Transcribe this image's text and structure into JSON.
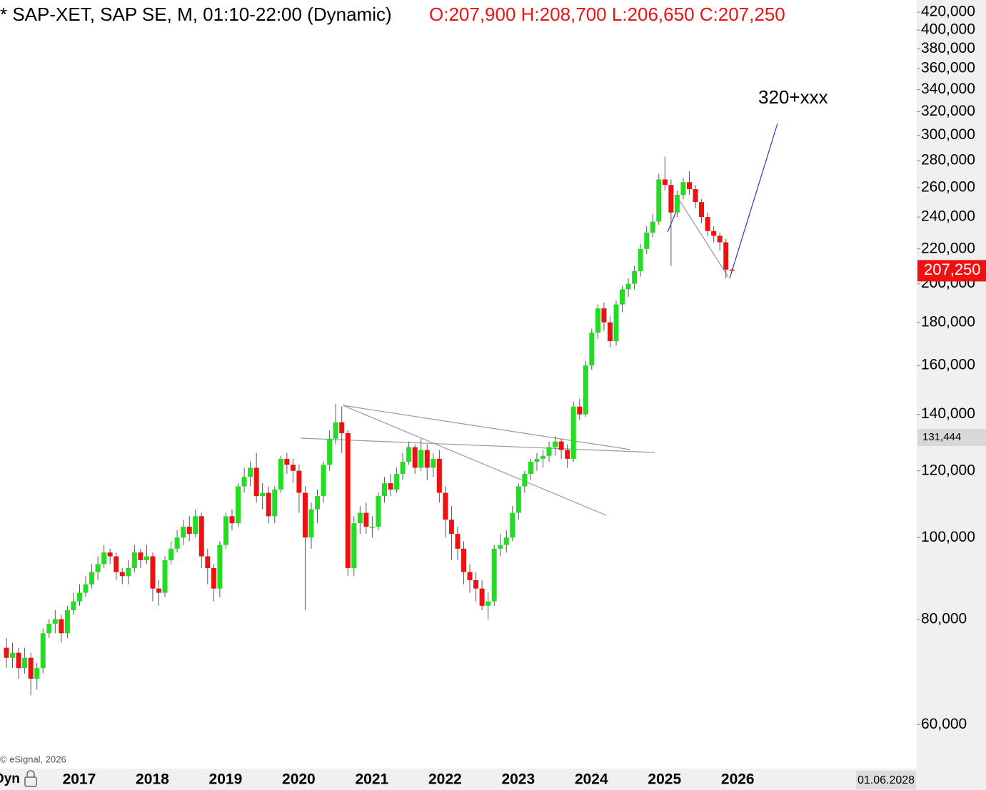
{
  "chart_data": {
    "type": "candlestick",
    "title": "* SAP-XET, SAP SE, M, 01:10-22:00 (Dynamic)",
    "ohlc_label": "O:207,900 H:208,700 L:206,650 C:207,250",
    "annotation": "320+xxx",
    "copyright": "© eSignal, 2026",
    "mode_label": "Dyn",
    "end_date_label": "01.06.2028",
    "log_scale": true,
    "up_color": "#22dd22",
    "down_color": "#ee1111",
    "ylim": [
      53.2,
      434.2
    ],
    "yticks": [
      {
        "value": 420,
        "label": "420,000"
      },
      {
        "value": 400,
        "label": "400,000"
      },
      {
        "value": 380,
        "label": "380,000"
      },
      {
        "value": 360,
        "label": "360,000"
      },
      {
        "value": 340,
        "label": "340,000"
      },
      {
        "value": 320,
        "label": "320,000"
      },
      {
        "value": 300,
        "label": "300,000"
      },
      {
        "value": 280,
        "label": "280,000"
      },
      {
        "value": 260,
        "label": "260,000"
      },
      {
        "value": 240,
        "label": "240,000"
      },
      {
        "value": 220,
        "label": "220,000"
      },
      {
        "value": 200,
        "label": "200,000"
      },
      {
        "value": 180,
        "label": "180,000"
      },
      {
        "value": 160,
        "label": "160,000"
      },
      {
        "value": 140,
        "label": "140,000"
      },
      {
        "value": 120,
        "label": "120,000"
      },
      {
        "value": 100,
        "label": "100,000"
      },
      {
        "value": 80,
        "label": "80,000"
      },
      {
        "value": 60,
        "label": "60,000"
      }
    ],
    "last_price": {
      "value": 207.25,
      "label": "207,250"
    },
    "crosshair_price": {
      "value": 131.444,
      "label": "131,444"
    },
    "categories": [
      null,
      null,
      null,
      null,
      null,
      null,
      null,
      null,
      null,
      null,
      null,
      "2017",
      null,
      null,
      null,
      null,
      null,
      null,
      null,
      null,
      null,
      null,
      null,
      "2018",
      null,
      null,
      null,
      null,
      null,
      null,
      null,
      null,
      null,
      null,
      null,
      "2019",
      null,
      null,
      null,
      null,
      null,
      null,
      null,
      null,
      null,
      null,
      null,
      "2020",
      null,
      null,
      null,
      null,
      null,
      null,
      null,
      null,
      null,
      null,
      null,
      "2021",
      null,
      null,
      null,
      null,
      null,
      null,
      null,
      null,
      null,
      null,
      null,
      "2022",
      null,
      null,
      null,
      null,
      null,
      null,
      null,
      null,
      null,
      null,
      null,
      "2023",
      null,
      null,
      null,
      null,
      null,
      null,
      null,
      null,
      null,
      null,
      null,
      "2024",
      null,
      null,
      null,
      null,
      null,
      null,
      null,
      null,
      null,
      null,
      null,
      "2025",
      null,
      null,
      null,
      null,
      null,
      null,
      null,
      null,
      null,
      null,
      null,
      "2026"
    ],
    "open": [
      74,
      72,
      73,
      70,
      72,
      68,
      70,
      77,
      79,
      80,
      77,
      82,
      84,
      86,
      88,
      91,
      93,
      96,
      95,
      91,
      90,
      92,
      96,
      94,
      95,
      87,
      86,
      94,
      97,
      100,
      103,
      101,
      106,
      95,
      92,
      87,
      98,
      106,
      104,
      115,
      118,
      121,
      112,
      113,
      106,
      114,
      124,
      122,
      120,
      113,
      100,
      108,
      112,
      122,
      131,
      137,
      133,
      92,
      104,
      107,
      103,
      103,
      112,
      116,
      114,
      119,
      123,
      128,
      121,
      127,
      121,
      124,
      113,
      105,
      101,
      97,
      91,
      89,
      87,
      83,
      84,
      97,
      98,
      100,
      107,
      115,
      119,
      123,
      124,
      125,
      128,
      130,
      127,
      124,
      143,
      140,
      160,
      175,
      187,
      180,
      171,
      189,
      197,
      200,
      207,
      220,
      230,
      237,
      266,
      262,
      243,
      255,
      264,
      259,
      250,
      240,
      231,
      228,
      224,
      207.9
    ],
    "high": [
      76,
      75,
      74,
      74,
      73,
      71,
      78,
      80,
      82,
      81,
      83,
      86,
      88,
      90,
      93,
      95,
      98,
      97,
      96,
      92,
      94,
      98,
      97,
      98,
      96,
      89,
      95,
      99,
      102,
      105,
      106,
      108,
      107,
      97,
      93,
      99,
      107,
      108,
      116,
      121,
      123,
      126,
      116,
      115,
      115,
      125,
      126,
      124,
      122,
      115,
      110,
      114,
      123,
      134,
      144,
      143,
      134,
      106,
      109,
      110,
      106,
      113,
      118,
      119,
      121,
      126,
      130,
      129,
      131,
      129,
      126,
      127,
      115,
      109,
      103,
      99,
      93,
      91,
      89,
      86,
      98,
      101,
      102,
      109,
      116,
      120,
      124,
      126,
      127,
      130,
      132,
      131,
      129,
      145,
      146,
      162,
      177,
      189,
      190,
      183,
      191,
      199,
      203,
      210,
      223,
      234,
      242,
      270,
      283,
      266,
      258,
      267,
      272,
      262,
      252,
      243,
      234,
      230,
      226,
      208.7
    ],
    "low": [
      70,
      70,
      68,
      69,
      65,
      66,
      69,
      76,
      77,
      75,
      76,
      81,
      83,
      85,
      87,
      89,
      92,
      93,
      89,
      88,
      88,
      91,
      92,
      93,
      84,
      83,
      85,
      93,
      96,
      98,
      99,
      100,
      92,
      88,
      84,
      85,
      97,
      102,
      103,
      113,
      115,
      110,
      108,
      104,
      104,
      113,
      119,
      116,
      107,
      82,
      97,
      104,
      110,
      120,
      129,
      126,
      90,
      90,
      101,
      101,
      100,
      102,
      110,
      112,
      113,
      117,
      122,
      119,
      120,
      117,
      118,
      110,
      100,
      94,
      94,
      88,
      86,
      84,
      82,
      80,
      83,
      95,
      96,
      99,
      105,
      113,
      117,
      120,
      121,
      123,
      125,
      124,
      121,
      123,
      138,
      139,
      158,
      172,
      176,
      168,
      169,
      185,
      193,
      197,
      204,
      217,
      227,
      235,
      258,
      210,
      240,
      252,
      255,
      246,
      236,
      228,
      224,
      219,
      203,
      206.65
    ],
    "close": [
      72,
      73,
      70,
      72,
      68,
      70,
      77,
      79,
      80,
      77,
      82,
      84,
      86,
      88,
      91,
      93,
      96,
      95,
      91,
      90,
      92,
      96,
      94,
      95,
      87,
      86,
      94,
      97,
      100,
      103,
      101,
      106,
      95,
      92,
      87,
      98,
      106,
      104,
      115,
      118,
      121,
      112,
      113,
      106,
      114,
      124,
      122,
      120,
      113,
      100,
      108,
      112,
      122,
      131,
      137,
      133,
      92,
      104,
      107,
      103,
      103,
      112,
      116,
      114,
      119,
      123,
      128,
      121,
      127,
      121,
      124,
      113,
      105,
      101,
      97,
      91,
      89,
      87,
      83,
      84,
      97,
      98,
      100,
      107,
      115,
      119,
      123,
      124,
      125,
      128,
      130,
      127,
      124,
      143,
      140,
      160,
      175,
      187,
      180,
      171,
      189,
      197,
      200,
      207,
      220,
      230,
      237,
      266,
      262,
      243,
      255,
      264,
      259,
      250,
      240,
      231,
      228,
      224,
      207.9,
      207.25
    ]
  }
}
